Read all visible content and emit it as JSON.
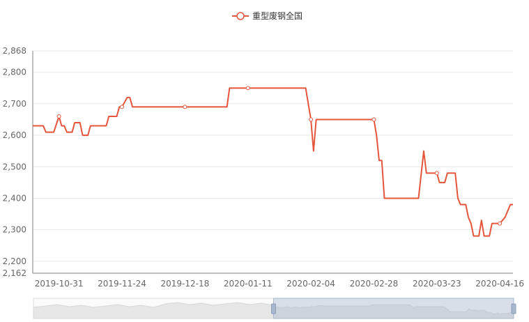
{
  "chart_data": {
    "type": "line",
    "title": "",
    "xlabel": "",
    "ylabel": "",
    "ylim": [
      2162,
      2868
    ],
    "xlim": [
      "2019-10-21",
      "2020-04-21"
    ],
    "grid": true,
    "legend_position": "top-center",
    "y_ticks": [
      "2,868",
      "2,800",
      "2,700",
      "2,600",
      "2,500",
      "2,400",
      "2,300",
      "2,200",
      "2,162"
    ],
    "y_tick_values": [
      2868,
      2800,
      2700,
      2600,
      2500,
      2400,
      2300,
      2200,
      2162
    ],
    "x_ticks": [
      "2019-10-31",
      "2019-11-24",
      "2019-12-18",
      "2020-01-11",
      "2020-02-04",
      "2020-02-28",
      "2020-03-23",
      "2020-04-16"
    ],
    "series": [
      {
        "name": "重型废钢全国",
        "color": "#e5553b",
        "points": [
          [
            "2019-10-21",
            2630
          ],
          [
            "2019-10-25",
            2630
          ],
          [
            "2019-10-26",
            2610
          ],
          [
            "2019-10-29",
            2610
          ],
          [
            "2019-10-31",
            2660
          ],
          [
            "2019-11-01",
            2630
          ],
          [
            "2019-11-02",
            2630
          ],
          [
            "2019-11-03",
            2610
          ],
          [
            "2019-11-05",
            2610
          ],
          [
            "2019-11-06",
            2640
          ],
          [
            "2019-11-08",
            2640
          ],
          [
            "2019-11-09",
            2600
          ],
          [
            "2019-11-11",
            2600
          ],
          [
            "2019-11-12",
            2630
          ],
          [
            "2019-11-18",
            2630
          ],
          [
            "2019-11-19",
            2660
          ],
          [
            "2019-11-22",
            2660
          ],
          [
            "2019-11-23",
            2690
          ],
          [
            "2019-11-24",
            2690
          ],
          [
            "2019-11-26",
            2720
          ],
          [
            "2019-11-27",
            2720
          ],
          [
            "2019-11-28",
            2690
          ],
          [
            "2020-01-03",
            2690
          ],
          [
            "2020-01-04",
            2750
          ],
          [
            "2020-02-02",
            2750
          ],
          [
            "2020-02-04",
            2650
          ],
          [
            "2020-02-05",
            2550
          ],
          [
            "2020-02-06",
            2650
          ],
          [
            "2020-02-28",
            2650
          ],
          [
            "2020-02-29",
            2600
          ],
          [
            "2020-03-01",
            2520
          ],
          [
            "2020-03-02",
            2520
          ],
          [
            "2020-03-03",
            2400
          ],
          [
            "2020-03-16",
            2400
          ],
          [
            "2020-03-18",
            2550
          ],
          [
            "2020-03-19",
            2480
          ],
          [
            "2020-03-23",
            2480
          ],
          [
            "2020-03-24",
            2450
          ],
          [
            "2020-03-26",
            2450
          ],
          [
            "2020-03-27",
            2480
          ],
          [
            "2020-03-30",
            2480
          ],
          [
            "2020-03-31",
            2400
          ],
          [
            "2020-04-01",
            2380
          ],
          [
            "2020-04-03",
            2380
          ],
          [
            "2020-04-04",
            2340
          ],
          [
            "2020-04-05",
            2320
          ],
          [
            "2020-04-06",
            2280
          ],
          [
            "2020-04-08",
            2280
          ],
          [
            "2020-04-09",
            2330
          ],
          [
            "2020-04-10",
            2280
          ],
          [
            "2020-04-12",
            2280
          ],
          [
            "2020-04-13",
            2320
          ],
          [
            "2020-04-16",
            2320
          ],
          [
            "2020-04-18",
            2340
          ],
          [
            "2020-04-20",
            2380
          ],
          [
            "2020-04-21",
            2380
          ]
        ]
      }
    ]
  },
  "data_zoom": {
    "start_percent": 50,
    "end_percent": 100
  }
}
